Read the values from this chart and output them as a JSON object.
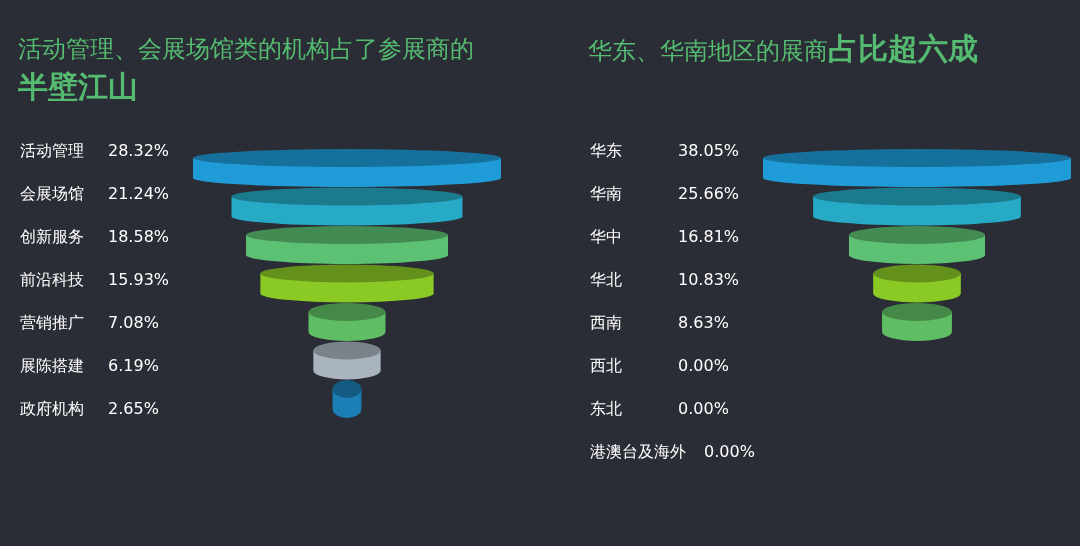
{
  "chart_data": [
    {
      "type": "other",
      "title": "活动管理、会展场馆类的机构占了参展商的",
      "subtitle": "半壁江山",
      "categories": [
        "活动管理",
        "会展场馆",
        "创新服务",
        "前沿科技",
        "营销推广",
        "展陈搭建",
        "政府机构"
      ],
      "values": [
        28.32,
        21.24,
        18.58,
        15.93,
        7.08,
        6.19,
        2.65
      ],
      "value_labels": [
        "28.32%",
        "21.24%",
        "18.58%",
        "15.93%",
        "7.08%",
        "6.19%",
        "2.65%"
      ],
      "colors": [
        "#1f9bd8",
        "#27aac6",
        "#5dc173",
        "#8bca25",
        "#5fbe63",
        "#aab4bf",
        "#1b7fb5"
      ]
    },
    {
      "type": "other",
      "title": "华东、华南地区的展商",
      "subtitle": "占比超六成",
      "categories": [
        "华东",
        "华南",
        "华中",
        "华北",
        "西南",
        "西北",
        "东北",
        "港澳台及海外"
      ],
      "values": [
        38.05,
        25.66,
        16.81,
        10.83,
        8.63,
        0,
        0,
        0
      ],
      "value_labels": [
        "38.05%",
        "25.66%",
        "16.81%",
        "10.83%",
        "8.63%",
        "0.00%",
        "0.00%",
        "0.00%"
      ],
      "colors": [
        "#1f9bd8",
        "#27aac6",
        "#5dc173",
        "#8bca25",
        "#5fbe63",
        null,
        null,
        null
      ]
    }
  ]
}
